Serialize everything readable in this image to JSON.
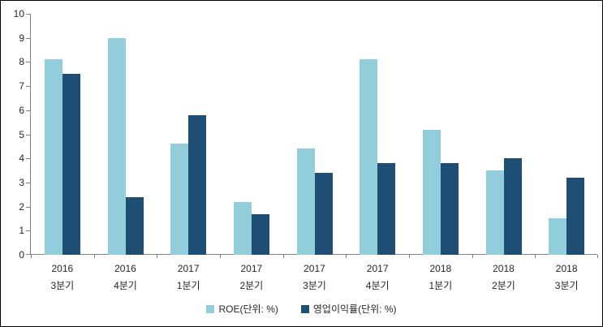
{
  "figure": {
    "background": "#FFFFFF",
    "frame_color": "#000000",
    "axis_color": "#808080",
    "text_color": "#262626"
  },
  "chart_data": {
    "type": "bar",
    "title": "",
    "xlabel": "",
    "ylabel": "",
    "ylim": [
      0,
      10
    ],
    "yticks": [
      0,
      1,
      2,
      3,
      4,
      5,
      6,
      7,
      8,
      9,
      10
    ],
    "grid": false,
    "legend_position": "bottom",
    "categories": [
      {
        "line1": "2016",
        "line2": "3분기"
      },
      {
        "line1": "2016",
        "line2": "4분기"
      },
      {
        "line1": "2017",
        "line2": "1분기"
      },
      {
        "line1": "2017",
        "line2": "2분기"
      },
      {
        "line1": "2017",
        "line2": "3분기"
      },
      {
        "line1": "2017",
        "line2": "4분기"
      },
      {
        "line1": "2018",
        "line2": "1분기"
      },
      {
        "line1": "2018",
        "line2": "2분기"
      },
      {
        "line1": "2018",
        "line2": "3분기"
      }
    ],
    "series": [
      {
        "name": "ROE(단위: %)",
        "slug": "roe",
        "color": "#92CDDC",
        "values": [
          8.1,
          9.0,
          4.6,
          2.2,
          4.4,
          8.1,
          5.2,
          3.5,
          1.5
        ]
      },
      {
        "name": "영업이익률(단위: %)",
        "slug": "operating-profit-margin",
        "color": "#1F4E74",
        "values": [
          7.5,
          2.4,
          5.8,
          1.7,
          3.4,
          3.8,
          3.8,
          4.0,
          3.2
        ]
      }
    ]
  }
}
